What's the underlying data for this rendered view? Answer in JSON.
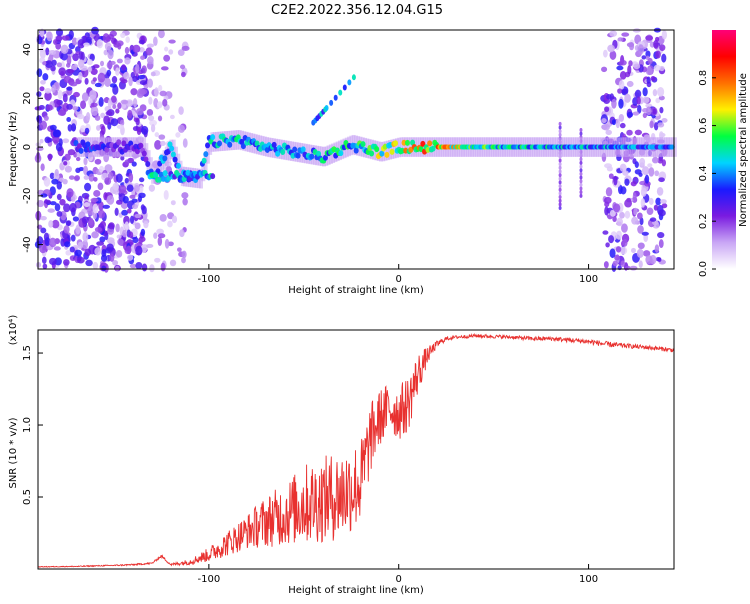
{
  "title": "C2E2.2022.356.12.04.G15",
  "chart_data": [
    {
      "type": "heatmap",
      "xlabel": "Height of straight line (km)",
      "ylabel": "Frequency (Hz)",
      "xlim": [
        -190,
        145
      ],
      "ylim": [
        -50,
        48
      ],
      "x_ticks": [
        -100,
        0,
        100
      ],
      "y_ticks": [
        -40,
        -20,
        0,
        20,
        40
      ],
      "colorbar": {
        "label": "Normalized spectral amplitude",
        "range": [
          0,
          1
        ],
        "ticks": [
          0.0,
          0.2,
          0.4,
          0.6,
          0.8
        ],
        "colors": [
          "#ffffff",
          "#c9a6f5",
          "#7a1be0",
          "#1a1aff",
          "#00d4ff",
          "#00ff40",
          "#fff000",
          "#ff7000",
          "#ff0000",
          "#ff0077"
        ]
      },
      "ridge": [
        {
          "x": -165,
          "f": 0,
          "a": 0.35
        },
        {
          "x": -150,
          "f": 0,
          "a": 0.3
        },
        {
          "x": -135,
          "f": 0,
          "a": 0.3
        },
        {
          "x": -130,
          "f": -12,
          "a": 0.45
        },
        {
          "x": -115,
          "f": -12,
          "a": 0.4
        },
        {
          "x": -105,
          "f": -13,
          "a": 0.45
        },
        {
          "x": -120,
          "f": 0,
          "a": 0.45
        },
        {
          "x": -100,
          "f": 2,
          "a": 0.5
        },
        {
          "x": -85,
          "f": 3,
          "a": 0.5
        },
        {
          "x": -70,
          "f": 0,
          "a": 0.45
        },
        {
          "x": -55,
          "f": -2,
          "a": 0.45
        },
        {
          "x": -40,
          "f": -4,
          "a": 0.5
        },
        {
          "x": -25,
          "f": 1,
          "a": 0.55
        },
        {
          "x": -10,
          "f": -2,
          "a": 0.65
        },
        {
          "x": 0,
          "f": 0,
          "a": 0.75
        },
        {
          "x": 15,
          "f": 0,
          "a": 0.85
        },
        {
          "x": 40,
          "f": 0,
          "a": 0.6
        },
        {
          "x": 80,
          "f": 0,
          "a": 0.5
        },
        {
          "x": 110,
          "f": 0,
          "a": 0.45
        },
        {
          "x": 140,
          "f": 0,
          "a": 0.4
        }
      ],
      "ridge_branch": [
        {
          "x": -45,
          "f": 10,
          "a": 0.45
        },
        {
          "x": -38,
          "f": 16,
          "a": 0.5
        },
        {
          "x": -22,
          "f": 30,
          "a": 0.3
        }
      ]
    },
    {
      "type": "line",
      "xlabel": "Height of straight line (km)",
      "ylabel": "SNR (10 * v/v)",
      "y_scale_note": "(x10⁴)",
      "xlim": [
        -190,
        145
      ],
      "ylim": [
        0,
        16600
      ],
      "x_ticks": [
        -100,
        0,
        100
      ],
      "y_tick_labels": [
        "0.5",
        "1.0",
        "1.5"
      ],
      "y_tick_values": [
        5000,
        10000,
        15000
      ],
      "series": [
        {
          "color": "#e8312f",
          "x": [
            -190,
            -170,
            -150,
            -140,
            -130,
            -125,
            -120,
            -110,
            -100,
            -90,
            -80,
            -70,
            -60,
            -50,
            -40,
            -30,
            -20,
            -15,
            -10,
            -5,
            0,
            5,
            10,
            15,
            20,
            25,
            30,
            40,
            50,
            60,
            70,
            80,
            90,
            100,
            110,
            120,
            130,
            145
          ],
          "values": [
            150,
            180,
            250,
            300,
            400,
            900,
            300,
            500,
            1000,
            1800,
            2600,
            3300,
            3800,
            4500,
            4800,
            5200,
            6000,
            9000,
            10500,
            11200,
            10800,
            11500,
            13500,
            14800,
            15600,
            16000,
            16100,
            16200,
            16150,
            16100,
            16000,
            16000,
            15900,
            15800,
            15600,
            15500,
            15400,
            15200
          ],
          "noise": [
            20,
            30,
            40,
            50,
            60,
            80,
            80,
            200,
            500,
            900,
            1200,
            1800,
            2200,
            2800,
            3000,
            3200,
            3000,
            2500,
            2000,
            1800,
            1900,
            2000,
            1500,
            600,
            250,
            150,
            120,
            120,
            120,
            120,
            140,
            150,
            160,
            180,
            200,
            160,
            150,
            150
          ]
        }
      ]
    }
  ]
}
